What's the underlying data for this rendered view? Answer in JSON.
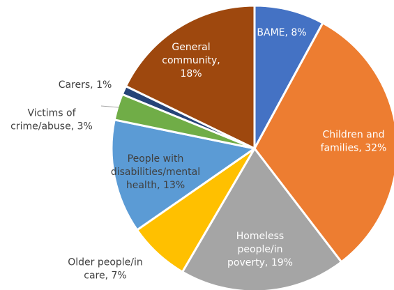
{
  "chart_data": {
    "type": "pie",
    "title": "",
    "slices": [
      {
        "label_lines": [
          "BAME, 8%"
        ],
        "label": "BAME",
        "value": 8,
        "color": "#4472C4",
        "label_color": "#ffffff",
        "label_position": "inside"
      },
      {
        "label_lines": [
          "Children and",
          "families, 32%"
        ],
        "label": "Children and families",
        "value": 32,
        "color": "#ED7D31",
        "label_color": "#ffffff",
        "label_position": "inside"
      },
      {
        "label_lines": [
          "Homeless",
          "people/in",
          "poverty, 19%"
        ],
        "label": "Homeless people/in poverty",
        "value": 19,
        "color": "#A5A5A5",
        "label_color": "#ffffff",
        "label_position": "inside"
      },
      {
        "label_lines": [
          "Older people/in",
          "care, 7%"
        ],
        "label": "Older people/in care",
        "value": 7,
        "color": "#FFC000",
        "label_color": "#404040",
        "label_position": "outside"
      },
      {
        "label_lines": [
          "People with",
          "disabilities/mental",
          "health, 13%"
        ],
        "label": "People with disabilities/mental health",
        "value": 13,
        "color": "#5B9BD5",
        "label_color": "#404040",
        "label_position": "inside"
      },
      {
        "label_lines": [
          "Victims of",
          "crime/abuse, 3%"
        ],
        "label": "Victims of crime/abuse",
        "value": 3,
        "color": "#70AD47",
        "label_color": "#404040",
        "label_position": "outside"
      },
      {
        "label_lines": [
          "Carers, 1%"
        ],
        "label": "Carers",
        "value": 1,
        "color": "#264478",
        "label_color": "#404040",
        "label_position": "outside"
      },
      {
        "label_lines": [
          "General",
          "community,",
          "18%"
        ],
        "label": "General community",
        "value": 18,
        "color": "#9E480E",
        "label_color": "#ffffff",
        "label_position": "inside"
      }
    ],
    "start_angle_deg": 0,
    "direction": "clockwise",
    "legend": "none"
  }
}
